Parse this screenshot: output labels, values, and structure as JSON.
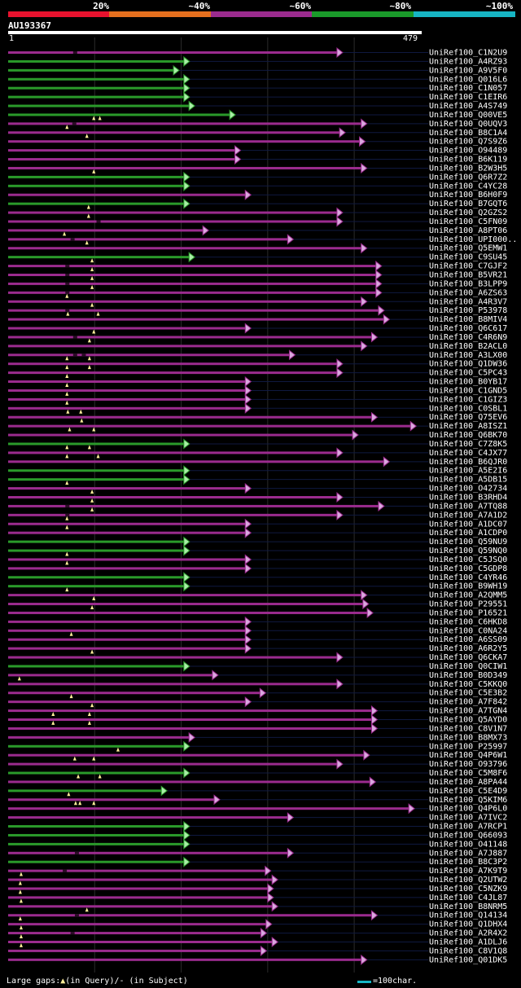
{
  "title": "AU193367",
  "query": {
    "start": "1",
    "end": "479",
    "length": 479
  },
  "legend": [
    {
      "label": "20%",
      "color": "#e8122e"
    },
    {
      "label": "~40%",
      "color": "#e56f1e"
    },
    {
      "label": "~60%",
      "color": "#9b2b8e"
    },
    {
      "label": "~80%",
      "color": "#1a9a2a"
    },
    {
      "label": "~100%",
      "color": "#17b5c4"
    }
  ],
  "footer": {
    "gaps": "Large gaps:",
    "in_query": "(in Query)/",
    "in_subject": "- (in Subject)",
    "scale_label": "=100char."
  },
  "hits": [
    {
      "name": "UniRef100_C1N2U9",
      "end": 382,
      "color": "magenta",
      "q": [],
      "s": [
        78
      ]
    },
    {
      "name": "UniRef100_A4RZ93",
      "end": 205,
      "color": "green",
      "q": [],
      "s": []
    },
    {
      "name": "UniRef100_A9V5F0",
      "end": 193,
      "color": "green",
      "q": [],
      "s": []
    },
    {
      "name": "UniRef100_Q016L6",
      "end": 205,
      "color": "green",
      "q": [],
      "s": []
    },
    {
      "name": "UniRef100_C1N057",
      "end": 205,
      "color": "green",
      "q": [],
      "s": []
    },
    {
      "name": "UniRef100_C1EIR6",
      "end": 205,
      "color": "green",
      "q": [],
      "s": []
    },
    {
      "name": "UniRef100_A4S749",
      "end": 211,
      "color": "green",
      "q": [],
      "s": []
    },
    {
      "name": "UniRef100_Q00VE5",
      "end": 258,
      "color": "green",
      "q": [],
      "s": []
    },
    {
      "name": "UniRef100_Q0UQV3",
      "end": 410,
      "color": "magenta",
      "q": [
        100,
        107
      ],
      "s": [
        77
      ]
    },
    {
      "name": "UniRef100_B8C1A4",
      "end": 385,
      "color": "magenta",
      "q": [
        69
      ],
      "s": []
    },
    {
      "name": "UniRef100_Q7S9Z6",
      "end": 408,
      "color": "magenta",
      "q": [
        92
      ],
      "s": []
    },
    {
      "name": "UniRef100_O94489",
      "end": 264,
      "color": "magenta",
      "q": [],
      "s": []
    },
    {
      "name": "UniRef100_B6K119",
      "end": 264,
      "color": "magenta",
      "q": [],
      "s": []
    },
    {
      "name": "UniRef100_B2W3H5",
      "end": 410,
      "color": "magenta",
      "q": [],
      "s": []
    },
    {
      "name": "UniRef100_Q6R7Z2",
      "end": 205,
      "color": "green",
      "q": [
        100
      ],
      "s": []
    },
    {
      "name": "UniRef100_C4YC28",
      "end": 205,
      "color": "green",
      "q": [],
      "s": []
    },
    {
      "name": "UniRef100_B6H0F9",
      "end": 276,
      "color": "magenta",
      "q": [],
      "s": []
    },
    {
      "name": "UniRef100_B7GQT6",
      "end": 205,
      "color": "green",
      "q": [],
      "s": []
    },
    {
      "name": "UniRef100_Q2GZS2",
      "end": 382,
      "color": "magenta",
      "q": [
        94
      ],
      "s": []
    },
    {
      "name": "UniRef100_C5FN09",
      "end": 382,
      "color": "magenta",
      "q": [
        94
      ],
      "s": [
        105
      ]
    },
    {
      "name": "UniRef100_A8PT06",
      "end": 227,
      "color": "magenta",
      "q": [],
      "s": []
    },
    {
      "name": "UniRef100_UPI000..",
      "end": 325,
      "color": "magenta",
      "q": [
        66
      ],
      "s": [
        75
      ]
    },
    {
      "name": "UniRef100_Q5EMW1",
      "end": 410,
      "color": "magenta",
      "q": [
        92
      ],
      "s": []
    },
    {
      "name": "UniRef100_C9SU45",
      "end": 211,
      "color": "green",
      "q": [],
      "s": []
    },
    {
      "name": "UniRef100_C7GJF2",
      "end": 427,
      "color": "magenta",
      "q": [
        98
      ],
      "s": [
        69
      ]
    },
    {
      "name": "UniRef100_B5VR21",
      "end": 427,
      "color": "magenta",
      "q": [
        98
      ],
      "s": [
        69
      ]
    },
    {
      "name": "UniRef100_B3LPP9",
      "end": 427,
      "color": "magenta",
      "q": [
        98
      ],
      "s": [
        69
      ]
    },
    {
      "name": "UniRef100_A6ZS63",
      "end": 427,
      "color": "magenta",
      "q": [
        98
      ],
      "s": [
        69
      ]
    },
    {
      "name": "UniRef100_A4R3V7",
      "end": 410,
      "color": "magenta",
      "q": [
        69
      ],
      "s": []
    },
    {
      "name": "UniRef100_P53978",
      "end": 430,
      "color": "magenta",
      "q": [
        98
      ],
      "s": [
        69
      ]
    },
    {
      "name": "UniRef100_B8MIV4",
      "end": 436,
      "color": "magenta",
      "q": [
        70,
        105
      ],
      "s": []
    },
    {
      "name": "UniRef100_Q6C617",
      "end": 276,
      "color": "magenta",
      "q": [],
      "s": []
    },
    {
      "name": "UniRef100_C4R6N9",
      "end": 422,
      "color": "magenta",
      "q": [
        100
      ],
      "s": [
        78
      ]
    },
    {
      "name": "UniRef100_B2ACL0",
      "end": 410,
      "color": "magenta",
      "q": [
        95
      ],
      "s": []
    },
    {
      "name": "UniRef100_A3LX00",
      "end": 327,
      "color": "magenta",
      "q": [],
      "s": [
        78,
        88
      ]
    },
    {
      "name": "UniRef100_Q1DW36",
      "end": 382,
      "color": "magenta",
      "q": [
        69,
        95
      ],
      "s": []
    },
    {
      "name": "UniRef100_C5PC43",
      "end": 382,
      "color": "magenta",
      "q": [
        69,
        95
      ],
      "s": []
    },
    {
      "name": "UniRef100_B0YB17",
      "end": 276,
      "color": "magenta",
      "q": [
        69
      ],
      "s": []
    },
    {
      "name": "UniRef100_C1GND5",
      "end": 276,
      "color": "magenta",
      "q": [
        69
      ],
      "s": []
    },
    {
      "name": "UniRef100_C1GIZ3",
      "end": 276,
      "color": "magenta",
      "q": [
        69
      ],
      "s": []
    },
    {
      "name": "UniRef100_C0SBL1",
      "end": 276,
      "color": "magenta",
      "q": [
        69
      ],
      "s": []
    },
    {
      "name": "UniRef100_Q75EV6",
      "end": 422,
      "color": "magenta",
      "q": [
        70,
        85
      ],
      "s": []
    },
    {
      "name": "UniRef100_A8ISZ1",
      "end": 467,
      "color": "magenta",
      "q": [
        86
      ],
      "s": []
    },
    {
      "name": "UniRef100_Q6BK70",
      "end": 400,
      "color": "magenta",
      "q": [
        72,
        100
      ],
      "s": []
    },
    {
      "name": "UniRef100_C7Z8K5",
      "end": 205,
      "color": "green",
      "q": [],
      "s": []
    },
    {
      "name": "UniRef100_C4JX77",
      "end": 382,
      "color": "magenta",
      "q": [
        69,
        95
      ],
      "s": []
    },
    {
      "name": "UniRef100_B6QJR0",
      "end": 436,
      "color": "magenta",
      "q": [
        69,
        105
      ],
      "s": []
    },
    {
      "name": "UniRef100_A5E2I6",
      "end": 205,
      "color": "green",
      "q": [],
      "s": []
    },
    {
      "name": "UniRef100_A5DB15",
      "end": 205,
      "color": "green",
      "q": [],
      "s": []
    },
    {
      "name": "UniRef100_O42734",
      "end": 276,
      "color": "magenta",
      "q": [
        69
      ],
      "s": []
    },
    {
      "name": "UniRef100_B3RHD4",
      "end": 382,
      "color": "magenta",
      "q": [
        98
      ],
      "s": []
    },
    {
      "name": "UniRef100_A7TQ88",
      "end": 430,
      "color": "magenta",
      "q": [
        98
      ],
      "s": [
        69
      ]
    },
    {
      "name": "UniRef100_A7A1D2",
      "end": 382,
      "color": "magenta",
      "q": [
        98
      ],
      "s": [
        69
      ]
    },
    {
      "name": "UniRef100_A1DC07",
      "end": 276,
      "color": "magenta",
      "q": [
        69
      ],
      "s": []
    },
    {
      "name": "UniRef100_A1CDP0",
      "end": 276,
      "color": "magenta",
      "q": [
        69
      ],
      "s": []
    },
    {
      "name": "UniRef100_Q59NU9",
      "end": 205,
      "color": "green",
      "q": [],
      "s": []
    },
    {
      "name": "UniRef100_Q59NQ0",
      "end": 205,
      "color": "green",
      "q": [],
      "s": []
    },
    {
      "name": "UniRef100_C5JSQ0",
      "end": 276,
      "color": "magenta",
      "q": [
        69
      ],
      "s": []
    },
    {
      "name": "UniRef100_C5GDP8",
      "end": 276,
      "color": "magenta",
      "q": [
        69
      ],
      "s": []
    },
    {
      "name": "UniRef100_C4YR46",
      "end": 205,
      "color": "green",
      "q": [],
      "s": []
    },
    {
      "name": "UniRef100_B9WH19",
      "end": 205,
      "color": "green",
      "q": [],
      "s": []
    },
    {
      "name": "UniRef100_A2QMM5",
      "end": 410,
      "color": "magenta",
      "q": [
        69
      ],
      "s": []
    },
    {
      "name": "UniRef100_P29551",
      "end": 412,
      "color": "magenta",
      "q": [
        100
      ],
      "s": []
    },
    {
      "name": "UniRef100_P16521",
      "end": 417,
      "color": "magenta",
      "q": [
        98
      ],
      "s": []
    },
    {
      "name": "UniRef100_C6HKD8",
      "end": 276,
      "color": "magenta",
      "q": [],
      "s": []
    },
    {
      "name": "UniRef100_C0NA24",
      "end": 276,
      "color": "magenta",
      "q": [],
      "s": []
    },
    {
      "name": "UniRef100_A6SS09",
      "end": 276,
      "color": "magenta",
      "q": [
        74
      ],
      "s": []
    },
    {
      "name": "UniRef100_A6R2Y5",
      "end": 276,
      "color": "magenta",
      "q": [],
      "s": []
    },
    {
      "name": "UniRef100_Q6CKA7",
      "end": 382,
      "color": "magenta",
      "q": [
        98
      ],
      "s": []
    },
    {
      "name": "UniRef100_Q0CIW1",
      "end": 205,
      "color": "green",
      "q": [],
      "s": []
    },
    {
      "name": "UniRef100_B0D349",
      "end": 238,
      "color": "magenta",
      "q": [],
      "s": []
    },
    {
      "name": "UniRef100_C5KKQ0",
      "end": 382,
      "color": "magenta",
      "q": [
        14
      ],
      "s": []
    },
    {
      "name": "UniRef100_C5E3B2",
      "end": 293,
      "color": "magenta",
      "q": [],
      "s": []
    },
    {
      "name": "UniRef100_A7F842",
      "end": 276,
      "color": "magenta",
      "q": [
        74
      ],
      "s": []
    },
    {
      "name": "UniRef100_A7TGN4",
      "end": 422,
      "color": "magenta",
      "q": [
        98
      ],
      "s": []
    },
    {
      "name": "UniRef100_Q5AYD0",
      "end": 422,
      "color": "magenta",
      "q": [
        53,
        95
      ],
      "s": []
    },
    {
      "name": "UniRef100_C8V1N7",
      "end": 422,
      "color": "magenta",
      "q": [
        53,
        95
      ],
      "s": []
    },
    {
      "name": "UniRef100_B8MX73",
      "end": 211,
      "color": "magenta",
      "q": [],
      "s": []
    },
    {
      "name": "UniRef100_P25997",
      "end": 205,
      "color": "green",
      "q": [],
      "s": []
    },
    {
      "name": "UniRef100_Q4P6W1",
      "end": 413,
      "color": "magenta",
      "q": [
        128
      ],
      "s": []
    },
    {
      "name": "UniRef100_O93796",
      "end": 382,
      "color": "magenta",
      "q": [
        78,
        100
      ],
      "s": []
    },
    {
      "name": "UniRef100_C5M8F6",
      "end": 205,
      "color": "green",
      "q": [],
      "s": []
    },
    {
      "name": "UniRef100_A8PA44",
      "end": 420,
      "color": "magenta",
      "q": [
        82,
        107
      ],
      "s": []
    },
    {
      "name": "UniRef100_C5E4D9",
      "end": 179,
      "color": "green",
      "q": [],
      "s": []
    },
    {
      "name": "UniRef100_Q5KIM6",
      "end": 240,
      "color": "magenta",
      "q": [
        71
      ],
      "s": []
    },
    {
      "name": "UniRef100_Q4P6L0",
      "end": 465,
      "color": "magenta",
      "q": [
        79,
        84,
        100
      ],
      "s": []
    },
    {
      "name": "UniRef100_A7IVC2",
      "end": 325,
      "color": "magenta",
      "q": [],
      "s": []
    },
    {
      "name": "UniRef100_A7RCP1",
      "end": 205,
      "color": "green",
      "q": [],
      "s": []
    },
    {
      "name": "UniRef100_Q66093",
      "end": 205,
      "color": "green",
      "q": [],
      "s": []
    },
    {
      "name": "UniRef100_O41148",
      "end": 205,
      "color": "green",
      "q": [],
      "s": []
    },
    {
      "name": "UniRef100_A7J887",
      "end": 325,
      "color": "magenta",
      "q": [],
      "s": [
        80
      ]
    },
    {
      "name": "UniRef100_B8C3P2",
      "end": 205,
      "color": "green",
      "q": [],
      "s": []
    },
    {
      "name": "UniRef100_A7K9T9",
      "end": 299,
      "color": "magenta",
      "q": [],
      "s": [
        66
      ]
    },
    {
      "name": "UniRef100_Q2UTW2",
      "end": 307,
      "color": "magenta",
      "q": [
        16
      ],
      "s": []
    },
    {
      "name": "UniRef100_C5NZK9",
      "end": 302,
      "color": "magenta",
      "q": [
        15
      ],
      "s": []
    },
    {
      "name": "UniRef100_C4JL87",
      "end": 302,
      "color": "magenta",
      "q": [
        15
      ],
      "s": []
    },
    {
      "name": "UniRef100_B8NRM5",
      "end": 307,
      "color": "magenta",
      "q": [
        16
      ],
      "s": []
    },
    {
      "name": "UniRef100_Q14134",
      "end": 422,
      "color": "magenta",
      "q": [
        92
      ],
      "s": [
        80
      ]
    },
    {
      "name": "UniRef100_Q1DHX4",
      "end": 300,
      "color": "magenta",
      "q": [
        15
      ],
      "s": []
    },
    {
      "name": "UniRef100_A2R4X2",
      "end": 294,
      "color": "magenta",
      "q": [
        16
      ],
      "s": [
        75
      ]
    },
    {
      "name": "UniRef100_A1DLJ6",
      "end": 307,
      "color": "magenta",
      "q": [
        16
      ],
      "s": []
    },
    {
      "name": "UniRef100_C8V1Q8",
      "end": 294,
      "color": "magenta",
      "q": [
        16
      ],
      "s": []
    },
    {
      "name": "UniRef100_Q01DK5",
      "end": 410,
      "color": "magenta",
      "q": [],
      "s": []
    }
  ]
}
